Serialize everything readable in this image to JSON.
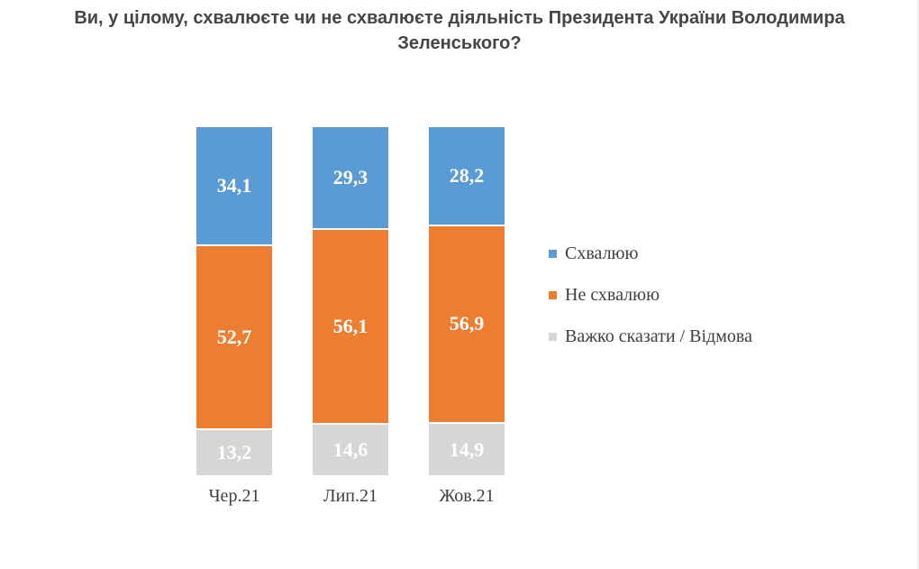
{
  "page": {
    "background": "#ffffff"
  },
  "title": "Ви, у цілому, схвалюєте чи не схвалюєте діяльність Президента України Володимира Зеленського?",
  "chart_data": {
    "type": "bar",
    "stacked": true,
    "orientation": "vertical",
    "title": "Ви, у цілому, схвалюєте чи не схвалюєте діяльність Президента України Володимира Зеленського?",
    "categories": [
      "Чер.21",
      "Лип.21",
      "Жов.21"
    ],
    "series": [
      {
        "key": "approve",
        "name": "Схвалюю",
        "color": "#5B9BD5",
        "values": [
          34.1,
          29.3,
          28.2
        ],
        "labels": [
          "34,1",
          "29,3",
          "28,2"
        ]
      },
      {
        "key": "disapprove",
        "name": "Не схвалюю",
        "color": "#ED7D31",
        "values": [
          52.7,
          56.1,
          56.9
        ],
        "labels": [
          "52,7",
          "56,1",
          "56,9"
        ]
      },
      {
        "key": "hard-to-say-refuse",
        "name": "Важко сказати / Відмова",
        "color": "#D6D6D6",
        "values": [
          13.2,
          14.6,
          14.9
        ],
        "labels": [
          "13,2",
          "14,6",
          "14,9"
        ]
      }
    ],
    "ylim": [
      0,
      100
    ],
    "grid": false,
    "legend_position": "right",
    "value_label_color": "#FFFFFF",
    "axis_label_color": "#3F3F3F",
    "title_color": "#454545"
  }
}
